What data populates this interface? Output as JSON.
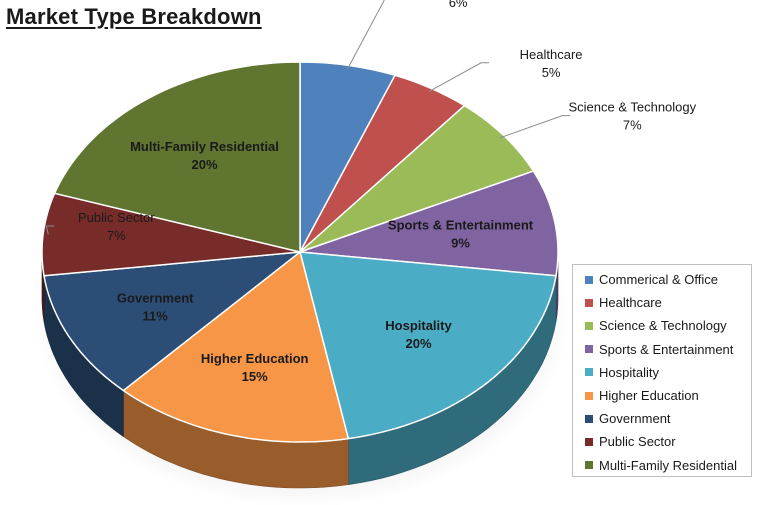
{
  "chart_data": {
    "type": "pie",
    "title": "Market Type Breakdown",
    "legend_position": "bottom-right",
    "slices": [
      {
        "label": "Commerical & Office",
        "value": 6,
        "value_label": "6%",
        "color": "#4f81bd"
      },
      {
        "label": "Healthcare",
        "value": 5,
        "value_label": "5%",
        "color": "#c0504d"
      },
      {
        "label": "Science & Technology",
        "value": 7,
        "value_label": "7%",
        "color": "#9bbb59"
      },
      {
        "label": "Sports & Entertainment",
        "value": 9,
        "value_label": "9%",
        "color": "#8064a2"
      },
      {
        "label": "Hospitality",
        "value": 20,
        "value_label": "20%",
        "color": "#4bacc6"
      },
      {
        "label": "Higher Education",
        "value": 15,
        "value_label": "15%",
        "color": "#f79646"
      },
      {
        "label": "Government",
        "value": 11,
        "value_label": "11%",
        "color": "#2c4d75"
      },
      {
        "label": "Public Sector",
        "value": 7,
        "value_label": "7%",
        "color": "#772c2a"
      },
      {
        "label": "Multi-Family Residential",
        "value": 20,
        "value_label": "20%",
        "color": "#5f7530"
      }
    ]
  }
}
